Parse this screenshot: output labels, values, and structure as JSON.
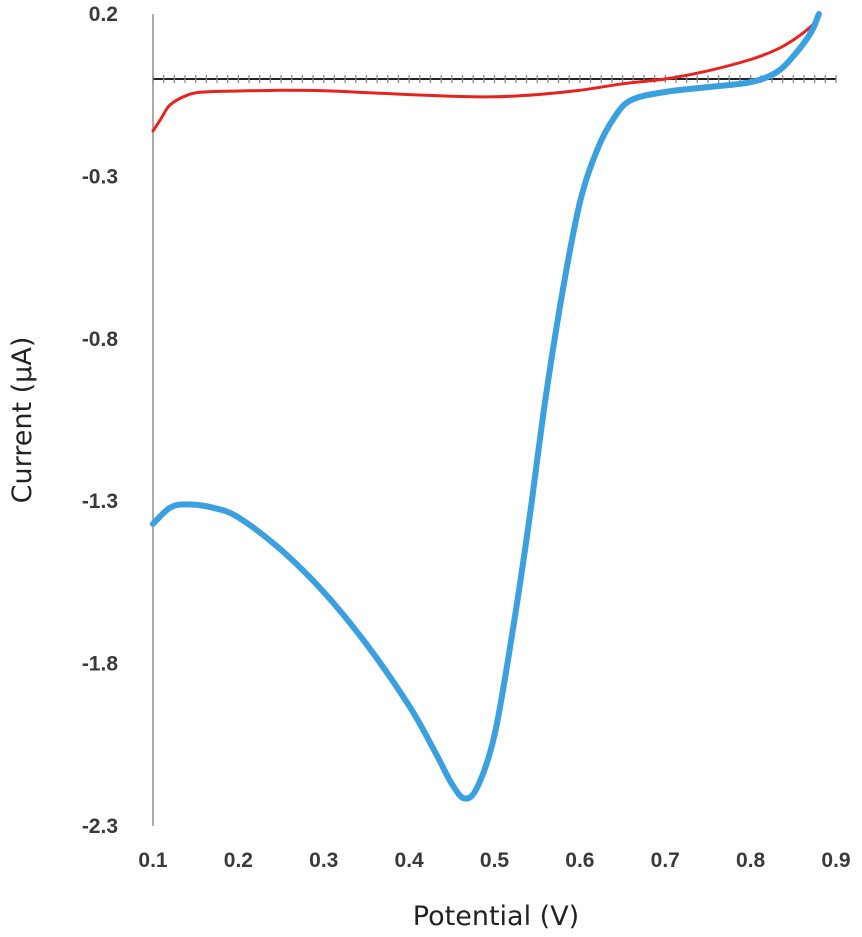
{
  "chart_data": {
    "type": "line",
    "xlabel": "Potential (V)",
    "ylabel": "Current (μA)",
    "xlim": [
      0.1,
      0.9
    ],
    "ylim": [
      -2.3,
      0.2
    ],
    "x_ticks": [
      "0.1",
      "0.2",
      "0.3",
      "0.4",
      "0.5",
      "0.6",
      "0.7",
      "0.8",
      "0.9"
    ],
    "y_ticks": [
      "0.2",
      "-0.3",
      "-0.8",
      "-1.3",
      "-1.8",
      "-2.3"
    ],
    "x_tick_values": [
      0.1,
      0.2,
      0.3,
      0.4,
      0.5,
      0.6,
      0.7,
      0.8,
      0.9
    ],
    "y_tick_values": [
      0.2,
      -0.3,
      -0.8,
      -1.3,
      -1.8,
      -2.3
    ],
    "zero_line": 0,
    "grid": false,
    "legend": "none",
    "series": [
      {
        "color": "#e8231f",
        "points": [
          [
            0.1,
            -0.16
          ],
          [
            0.11,
            -0.12
          ],
          [
            0.12,
            -0.08
          ],
          [
            0.14,
            -0.05
          ],
          [
            0.16,
            -0.04
          ],
          [
            0.2,
            -0.037
          ],
          [
            0.25,
            -0.035
          ],
          [
            0.3,
            -0.036
          ],
          [
            0.35,
            -0.042
          ],
          [
            0.4,
            -0.048
          ],
          [
            0.45,
            -0.053
          ],
          [
            0.5,
            -0.055
          ],
          [
            0.55,
            -0.048
          ],
          [
            0.6,
            -0.035
          ],
          [
            0.65,
            -0.015
          ],
          [
            0.7,
            0.0
          ],
          [
            0.75,
            0.025
          ],
          [
            0.8,
            0.06
          ],
          [
            0.83,
            0.09
          ],
          [
            0.85,
            0.12
          ],
          [
            0.87,
            0.16
          ],
          [
            0.88,
            0.19
          ]
        ]
      },
      {
        "color": "#3aa0e0",
        "points": [
          [
            0.1,
            -1.37
          ],
          [
            0.12,
            -1.32
          ],
          [
            0.14,
            -1.31
          ],
          [
            0.17,
            -1.32
          ],
          [
            0.2,
            -1.35
          ],
          [
            0.25,
            -1.45
          ],
          [
            0.3,
            -1.58
          ],
          [
            0.35,
            -1.74
          ],
          [
            0.4,
            -1.93
          ],
          [
            0.43,
            -2.07
          ],
          [
            0.45,
            -2.17
          ],
          [
            0.465,
            -2.215
          ],
          [
            0.48,
            -2.18
          ],
          [
            0.5,
            -2.02
          ],
          [
            0.52,
            -1.72
          ],
          [
            0.54,
            -1.37
          ],
          [
            0.56,
            -0.98
          ],
          [
            0.58,
            -0.65
          ],
          [
            0.6,
            -0.38
          ],
          [
            0.62,
            -0.22
          ],
          [
            0.64,
            -0.12
          ],
          [
            0.66,
            -0.065
          ],
          [
            0.7,
            -0.04
          ],
          [
            0.75,
            -0.025
          ],
          [
            0.8,
            -0.01
          ],
          [
            0.83,
            0.02
          ],
          [
            0.85,
            0.07
          ],
          [
            0.87,
            0.14
          ],
          [
            0.88,
            0.2
          ]
        ]
      }
    ]
  }
}
